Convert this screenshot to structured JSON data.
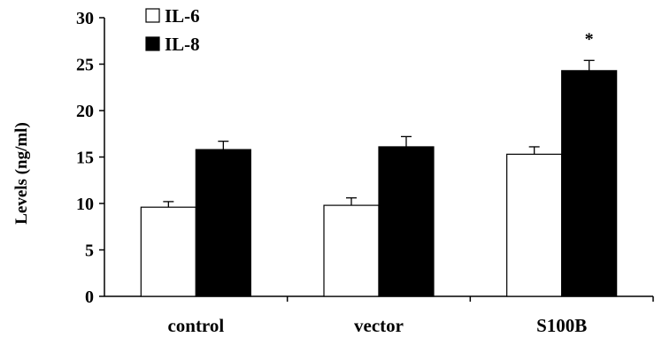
{
  "chart_data": {
    "type": "bar",
    "categories": [
      "control",
      "vector",
      "S100B"
    ],
    "series": [
      {
        "name": "IL-6",
        "values": [
          9.6,
          9.8,
          15.3
        ],
        "errors": [
          0.6,
          0.8,
          0.8
        ],
        "fill": "#ffffff"
      },
      {
        "name": "IL-8",
        "values": [
          15.8,
          16.1,
          24.3
        ],
        "errors": [
          0.9,
          1.1,
          1.1
        ],
        "fill": "#000000"
      }
    ],
    "ylabel": "Levels (ng/ml)",
    "ylim": [
      0,
      30
    ],
    "yticks": [
      "0",
      "5",
      "10",
      "15",
      "20",
      "25",
      "30"
    ],
    "annotations": [
      {
        "category": "S100B",
        "series": "IL-8",
        "text": "*"
      }
    ],
    "grid": false,
    "legend_position": "top-left"
  }
}
